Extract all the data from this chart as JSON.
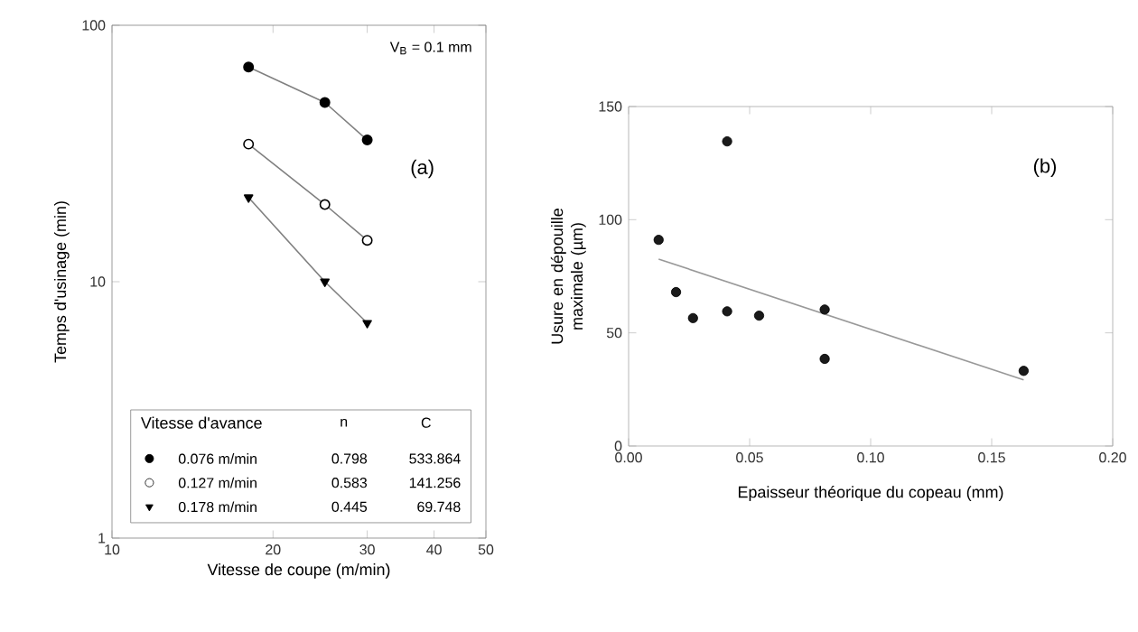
{
  "chart_data": [
    {
      "type": "line",
      "xlabel": "Vitesse de coupe (m/min)",
      "ylabel": "Temps d'usinage (min)",
      "log": "xy",
      "xlim": [
        10,
        50
      ],
      "ylim": [
        1,
        100
      ],
      "xticks": [
        10,
        20,
        30,
        40,
        50
      ],
      "yticks": [
        1,
        10,
        100
      ],
      "grid": false,
      "legend": "bottom",
      "legend_title": "Vitesse d'avance",
      "annotations": [
        "V$_{B}$ = 0.1 mm",
        "(a)",
        "n",
        "C",
        "0.798",
        "533.864",
        "0.583",
        "141.256",
        "0.445",
        "69.748"
      ],
      "series": [
        {
          "name": "0.076 m/min",
          "color": "#000000",
          "marker": "circle",
          "x": [
            18,
            25,
            30
          ],
          "values": [
            68.7,
            50,
            35.7
          ]
        },
        {
          "name": "0.127 m/min",
          "color": "#ffffff",
          "marker": "circle",
          "x": [
            18,
            25,
            30
          ],
          "values": [
            34.4,
            20,
            14.5
          ]
        },
        {
          "name": "0.178 m/min",
          "color": "#000000",
          "marker": "triangle",
          "x": [
            18,
            25,
            30
          ],
          "values": [
            21.3,
            10,
            6.9
          ]
        }
      ]
    },
    {
      "type": "scatter",
      "xlabel": "Epaisseur théorique du copeau (mm)",
      "ylabel": "Usure en dépouille maximale (µm)",
      "xlim": [
        0,
        0.2
      ],
      "ylim": [
        0,
        150
      ],
      "xticks": [
        {
          "value": 0,
          "label": "0.00"
        },
        {
          "value": 0.05,
          "label": "0.05"
        },
        {
          "value": 0.1,
          "label": "0.10"
        },
        {
          "value": 0.15,
          "label": "0.15"
        },
        {
          "value": 0.2,
          "label": "0.20"
        }
      ],
      "yticks": [
        0,
        50,
        100,
        150
      ],
      "grid": false,
      "annotations": [
        "(b)"
      ],
      "series": [
        {
          "color": "#1a1a1a",
          "marker": "circle",
          "x": [
            0.0124,
            0.0196,
            0.0266,
            0.0407,
            0.0407,
            0.0539,
            0.081,
            0.081,
            0.1632
          ],
          "values": [
            91.1,
            68.0,
            56.5,
            134.6,
            59.5,
            57.6,
            60.3,
            38.5,
            33.2
          ]
        },
        {
          "type": "line",
          "color": "#999999",
          "marker": "none",
          "x": [
            0.0124,
            0.1632
          ],
          "values": [
            82.6,
            29.2
          ]
        }
      ]
    }
  ]
}
